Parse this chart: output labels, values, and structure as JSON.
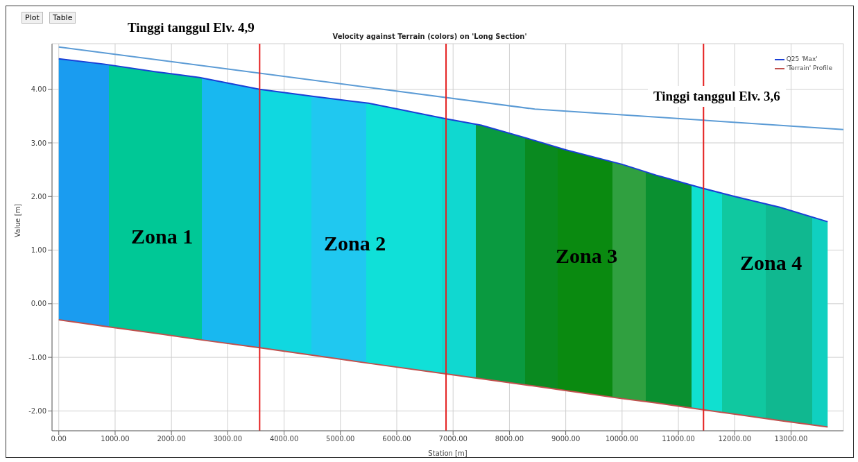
{
  "chart_data": {
    "type": "line",
    "title": "Velocity against Terrain (colors) on 'Long Section'",
    "xlabel": "Station [m]",
    "ylabel": "Value [m]",
    "x": [
      0,
      800,
      1700,
      2500,
      3566,
      4500,
      5500,
      6875,
      7500,
      8400,
      9000,
      10000,
      10600,
      11446,
      12000,
      12800,
      13650
    ],
    "series": [
      {
        "name": "Q25 'Max'",
        "color": "#1a3fd6",
        "values": [
          4.57,
          4.47,
          4.33,
          4.22,
          4.0,
          3.87,
          3.74,
          3.45,
          3.33,
          3.06,
          2.87,
          2.6,
          2.4,
          2.15,
          2.0,
          1.8,
          1.53
        ],
        "lower": [
          -0.3,
          -0.42,
          -0.55,
          -0.67,
          -0.82,
          -0.96,
          -1.11,
          -1.31,
          -1.4,
          -1.53,
          -1.62,
          -1.77,
          -1.85,
          -1.98,
          -2.06,
          -2.18,
          -2.3
        ],
        "upper": [
          4.57,
          4.47,
          4.33,
          4.22,
          4.0,
          3.87,
          3.74,
          3.45,
          3.33,
          3.06,
          2.87,
          2.6,
          2.4,
          2.15,
          2.0,
          1.8,
          1.53
        ],
        "colors": [
          "#1a9cf0",
          "#00c896",
          "#00c896",
          "#18b8f0",
          "#10d8e0",
          "#20c8f0",
          "#10e0d8",
          "#10d8d0",
          "#0a9a40",
          "#0a8a20",
          "#0a8a10",
          "#30a040",
          "#0a9030",
          "#10e0d0",
          "#10c8a0",
          "#10b890",
          "#10d0c0"
        ]
      },
      {
        "name": "'Terrain' Profile",
        "color": "#c0504d",
        "values": [
          -0.3,
          -0.42,
          -0.55,
          -0.67,
          -0.82,
          -0.96,
          -1.11,
          -1.31,
          -1.4,
          -1.53,
          -1.62,
          -1.77,
          -1.85,
          -1.98,
          -2.06,
          -2.18,
          -2.3
        ]
      },
      {
        "color": "#5b9bd5",
        "x": [
          0,
          8450,
          13930
        ],
        "values": [
          4.79,
          3.63,
          3.25
        ]
      }
    ],
    "xlim": [
      -120,
      13930
    ],
    "xticks": [
      {
        "value": 0,
        "label": "0.00"
      },
      {
        "value": 1000,
        "label": "1000.00"
      },
      {
        "value": 2000,
        "label": "2000.00"
      },
      {
        "value": 3000,
        "label": "3000.00"
      },
      {
        "value": 4000,
        "label": "4000.00"
      },
      {
        "value": 5000,
        "label": "5000.00"
      },
      {
        "value": 6000,
        "label": "6000.00"
      },
      {
        "value": 7000,
        "label": "7000.00"
      },
      {
        "value": 8000,
        "label": "8000.00"
      },
      {
        "value": 9000,
        "label": "9000.00"
      },
      {
        "value": 10000,
        "label": "10000.00"
      },
      {
        "value": 11000,
        "label": "11000.00"
      },
      {
        "value": 12000,
        "label": "12000.00"
      },
      {
        "value": 13000,
        "label": "13000.00"
      }
    ],
    "ylim": [
      -2.37,
      4.85
    ],
    "yticks": [
      {
        "value": -2,
        "label": "-2.00"
      },
      {
        "value": -1,
        "label": "-1.00"
      },
      {
        "value": 0,
        "label": "0.00"
      },
      {
        "value": 1,
        "label": "1.00"
      },
      {
        "value": 2,
        "label": "2.00"
      },
      {
        "value": 3,
        "label": "3.00"
      },
      {
        "value": 4,
        "label": "4.00"
      }
    ],
    "ref_lines": [
      {
        "axis": "x",
        "value": 3566,
        "color": "#e52020"
      },
      {
        "axis": "x",
        "value": 6875,
        "color": "#e52020"
      },
      {
        "axis": "x",
        "value": 11446,
        "color": "#e52020"
      }
    ],
    "annotations": [
      "Plot",
      "Table",
      "Tinggi tanggul Elv. 4,9",
      "Tinggi tanggul Elv. 3,6",
      "Zona 1",
      "Zona 2",
      "Zona 3",
      "Zona 4"
    ],
    "grid": true,
    "legend": "top right",
    "marker": "none",
    "line_style": "solid"
  }
}
